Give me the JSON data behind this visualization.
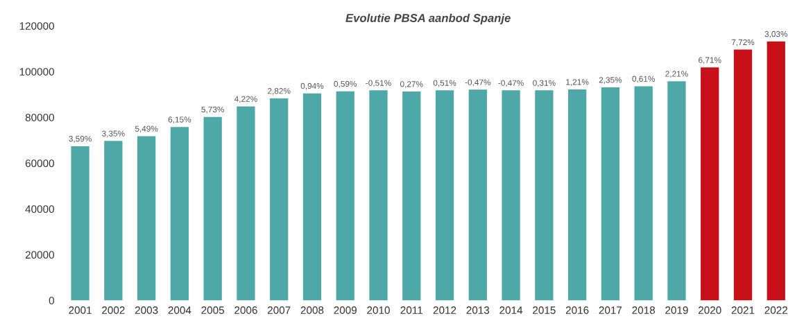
{
  "chart_data": {
    "type": "bar",
    "title": "Evolutie PBSA aanbod Spanje",
    "categories": [
      "2001",
      "2002",
      "2003",
      "2004",
      "2005",
      "2006",
      "2007",
      "2008",
      "2009",
      "2010",
      "2011",
      "2012",
      "2013",
      "2014",
      "2015",
      "2016",
      "2017",
      "2018",
      "2019",
      "2020",
      "2021",
      "2022"
    ],
    "values": [
      67400,
      69700,
      71800,
      75800,
      80200,
      84800,
      88300,
      90500,
      91400,
      91800,
      91300,
      91800,
      92100,
      91800,
      91800,
      92200,
      93100,
      93600,
      95800,
      101800,
      109600,
      113200
    ],
    "colors": [
      "#4fa8a8",
      "#4fa8a8",
      "#4fa8a8",
      "#4fa8a8",
      "#4fa8a8",
      "#4fa8a8",
      "#4fa8a8",
      "#4fa8a8",
      "#4fa8a8",
      "#4fa8a8",
      "#4fa8a8",
      "#4fa8a8",
      "#4fa8a8",
      "#4fa8a8",
      "#4fa8a8",
      "#4fa8a8",
      "#4fa8a8",
      "#4fa8a8",
      "#4fa8a8",
      "#c8101a",
      "#c8101a",
      "#c8101a"
    ],
    "annotations": [
      {
        "text": "3,59%",
        "x": "2001",
        "y": 67400
      },
      {
        "text": "3,35%",
        "x": "2002",
        "y": 69700
      },
      {
        "text": "5,49%",
        "x": "2003",
        "y": 71800
      },
      {
        "text": "6,15%",
        "x": "2004",
        "y": 75800
      },
      {
        "text": "5,73%",
        "x": "2005",
        "y": 80200
      },
      {
        "text": "4,22%",
        "x": "2006",
        "y": 84800
      },
      {
        "text": "2,82%",
        "x": "2007",
        "y": 88300
      },
      {
        "text": "0,94%",
        "x": "2008",
        "y": 90500
      },
      {
        "text": "0,59%",
        "x": "2009",
        "y": 91400
      },
      {
        "text": "-0,51%",
        "x": "2010",
        "y": 91800
      },
      {
        "text": "0,27%",
        "x": "2011",
        "y": 91300
      },
      {
        "text": "0,51%",
        "x": "2012",
        "y": 91800
      },
      {
        "text": "-0,47%",
        "x": "2013",
        "y": 92100
      },
      {
        "text": "-0,47%",
        "x": "2014",
        "y": 91800
      },
      {
        "text": "0,31%",
        "x": "2015",
        "y": 91800
      },
      {
        "text": "1,21%",
        "x": "2016",
        "y": 92200
      },
      {
        "text": "2,35%",
        "x": "2017",
        "y": 93100
      },
      {
        "text": "0,61%",
        "x": "2018",
        "y": 93600
      },
      {
        "text": "2,21%",
        "x": "2019",
        "y": 95800
      },
      {
        "text": "6,71%",
        "x": "2020",
        "y": 101800
      },
      {
        "text": "7,72%",
        "x": "2021",
        "y": 109600
      },
      {
        "text": "3,03%",
        "x": "2022",
        "y": 113200
      }
    ],
    "ylim": [
      0,
      120000
    ],
    "yticks": [
      0,
      20000,
      40000,
      60000,
      80000,
      100000,
      120000
    ],
    "grid": false
  }
}
